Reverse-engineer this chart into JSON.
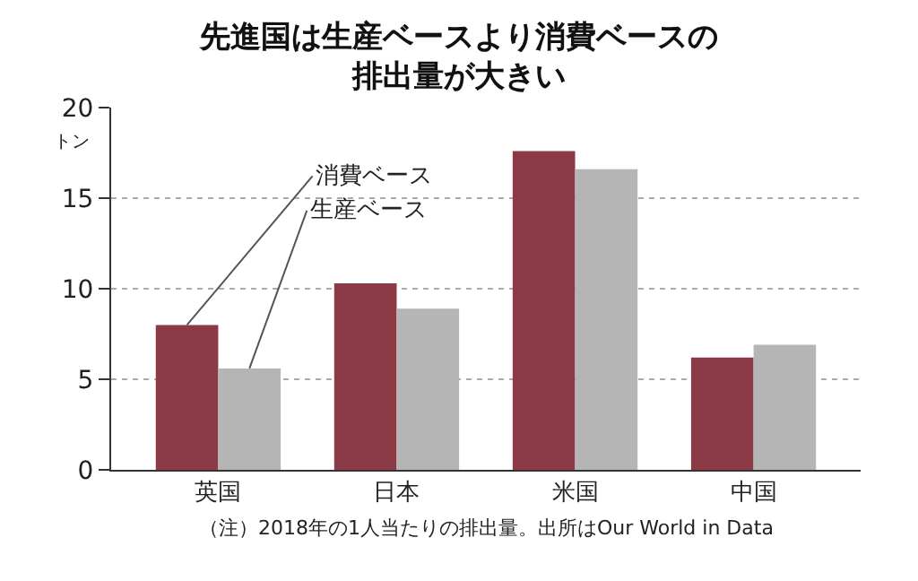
{
  "chart_data": {
    "type": "bar",
    "title": "先進国は生産ベースより消費ベースの排出量が大きい",
    "ylabel": "トン",
    "categories": [
      "英国",
      "日本",
      "米国",
      "中国"
    ],
    "series": [
      {
        "name": "消費ベース",
        "color": "#8b3a46",
        "values": [
          8.0,
          10.3,
          17.6,
          6.2
        ]
      },
      {
        "name": "生産ベース",
        "color": "#b5b5b5",
        "values": [
          5.6,
          8.9,
          16.6,
          6.9
        ]
      }
    ],
    "ylim": [
      0,
      20
    ],
    "yticks": [
      0,
      5,
      10,
      15,
      20
    ],
    "grid": "y",
    "legend": false,
    "annotations": [
      "（注）2018年の1人当たりの排出量。出所はOur World in Data"
    ]
  }
}
